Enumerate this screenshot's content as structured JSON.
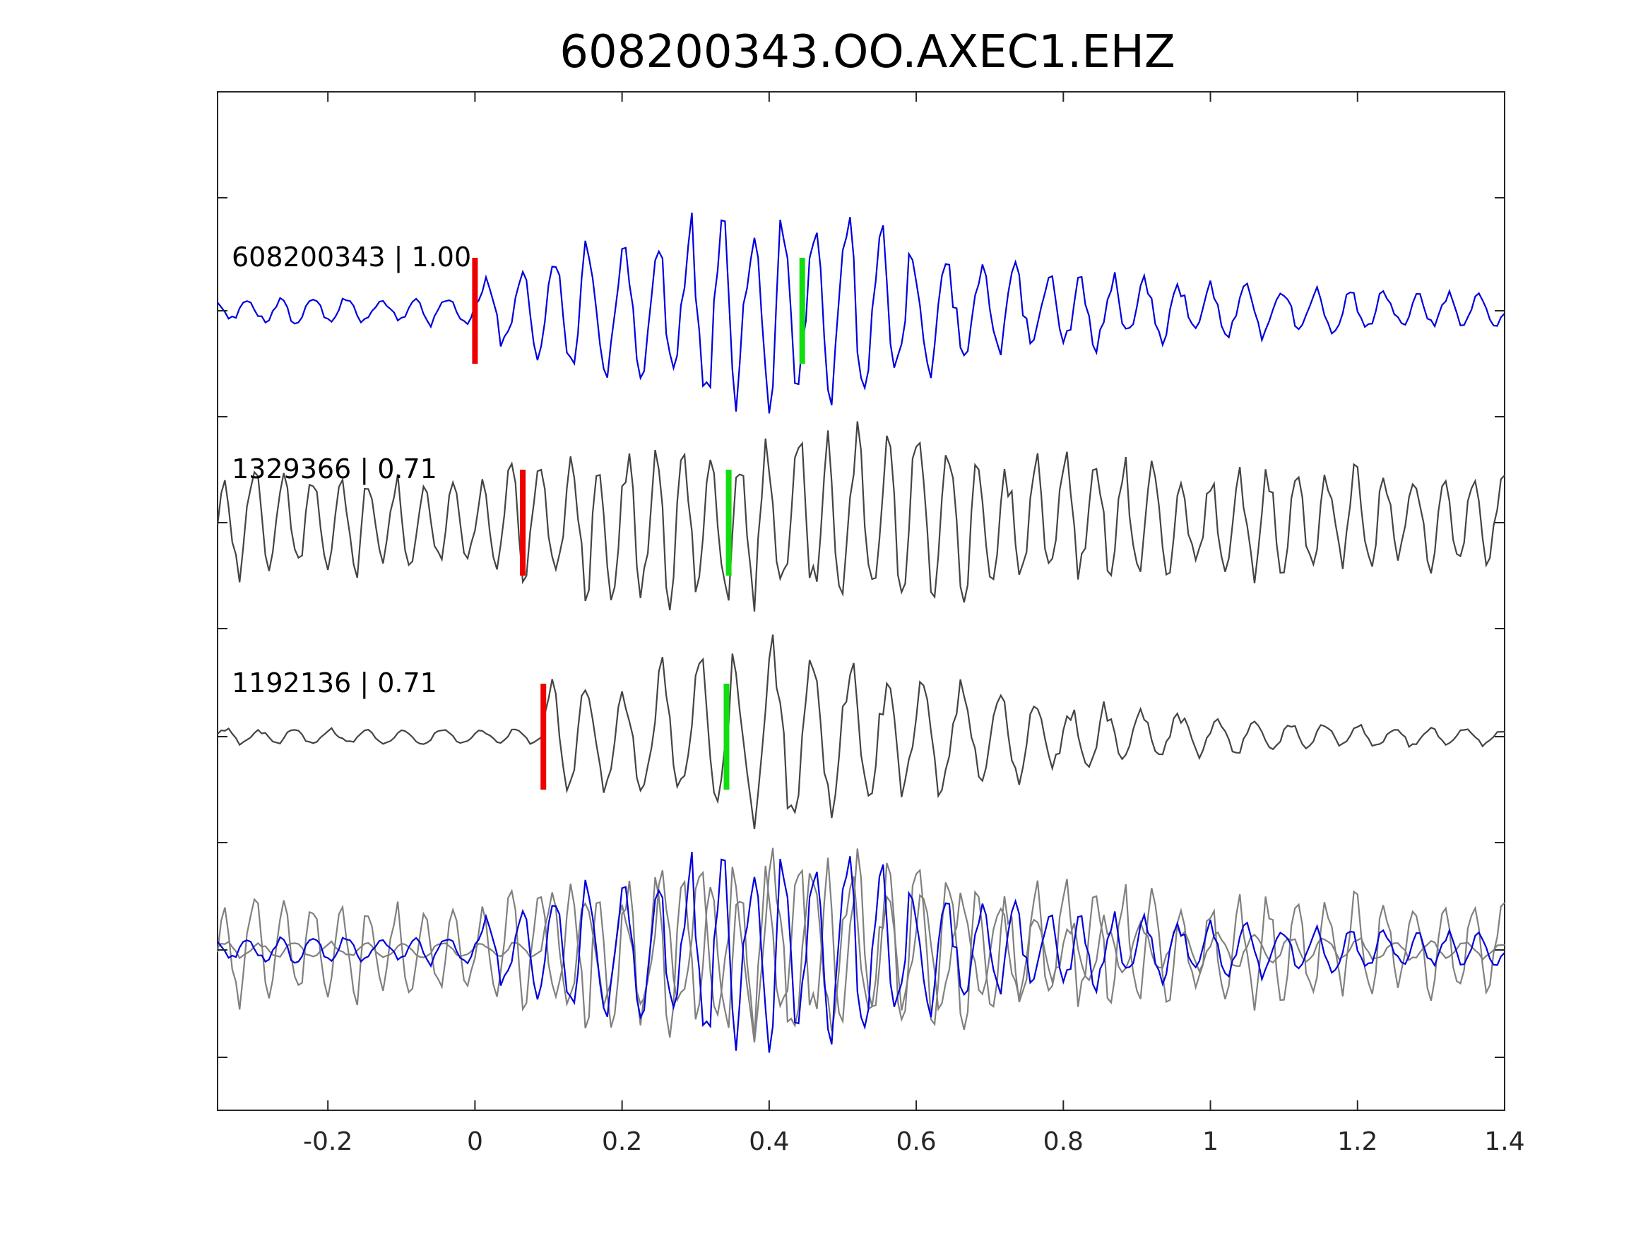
{
  "chart_data": {
    "type": "line",
    "title": "608200343.OO.AXEC1.EHZ",
    "xlabel": "",
    "ylabel": "",
    "xlim": [
      -0.35,
      1.4
    ],
    "xticks": [
      "-0.2",
      "0",
      "0.2",
      "0.4",
      "0.6",
      "0.8",
      "1",
      "1.2",
      "1.4"
    ],
    "xtick_values": [
      -0.2,
      0,
      0.2,
      0.4,
      0.6,
      0.8,
      1,
      1.2,
      1.4
    ],
    "grid": false,
    "sample_interval": 0.005,
    "colors": {
      "template": "#0000dd",
      "match": "#444444",
      "overlay_match": "#808080",
      "p_pick": "#ee0000",
      "s_pick": "#11dd11"
    },
    "traces": [
      {
        "label": "608200343 | 1.00",
        "color": "template",
        "p_pick": 0.0,
        "s_pick": 0.445,
        "envelope": [
          [
            -0.35,
            0.12
          ],
          [
            -0.01,
            0.14
          ],
          [
            0.0,
            0.3
          ],
          [
            0.1,
            0.55
          ],
          [
            0.2,
            0.75
          ],
          [
            0.3,
            0.95
          ],
          [
            0.4,
            0.95
          ],
          [
            0.5,
            0.9
          ],
          [
            0.58,
            0.85
          ],
          [
            0.66,
            0.5
          ],
          [
            0.9,
            0.35
          ],
          [
            1.2,
            0.22
          ],
          [
            1.4,
            0.16
          ]
        ],
        "frequency": 22,
        "seed": 3
      },
      {
        "label": "1329366 | 0.71",
        "color": "match",
        "p_pick": 0.065,
        "s_pick": 0.345,
        "envelope": [
          [
            -0.35,
            0.55
          ],
          [
            0.0,
            0.45
          ],
          [
            0.1,
            0.7
          ],
          [
            0.2,
            0.8
          ],
          [
            0.3,
            0.75
          ],
          [
            0.4,
            0.9
          ],
          [
            0.5,
            0.85
          ],
          [
            0.58,
            0.95
          ],
          [
            0.7,
            0.7
          ],
          [
            0.9,
            0.6
          ],
          [
            1.2,
            0.55
          ],
          [
            1.4,
            0.45
          ]
        ],
        "frequency": 25,
        "seed": 11
      },
      {
        "label": "1192136 | 0.71",
        "color": "match",
        "p_pick": 0.093,
        "s_pick": 0.342,
        "envelope": [
          [
            -0.35,
            0.08
          ],
          [
            0.09,
            0.08
          ],
          [
            0.1,
            0.7
          ],
          [
            0.2,
            0.55
          ],
          [
            0.3,
            0.8
          ],
          [
            0.37,
            1.0
          ],
          [
            0.45,
            0.85
          ],
          [
            0.55,
            0.7
          ],
          [
            0.65,
            0.55
          ],
          [
            0.8,
            0.35
          ],
          [
            1.0,
            0.2
          ],
          [
            1.2,
            0.12
          ],
          [
            1.4,
            0.08
          ]
        ],
        "frequency": 20,
        "seed": 23
      }
    ],
    "overlay": {
      "description_index": 3,
      "members": [
        0,
        1,
        2
      ]
    }
  }
}
